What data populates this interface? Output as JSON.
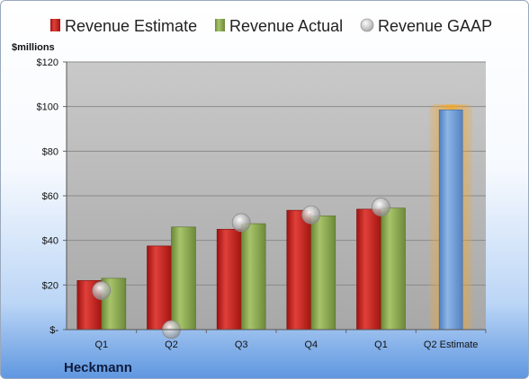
{
  "chart_data": {
    "type": "bar",
    "title": "",
    "ylabel": "$millions",
    "xlabel": "",
    "footer": "Heckmann",
    "categories": [
      "Q1",
      "Q2",
      "Q3",
      "Q4",
      "Q1",
      "Q2 Estimate"
    ],
    "ylim": [
      0,
      120
    ],
    "yticks": [
      0,
      20,
      40,
      60,
      80,
      100,
      120
    ],
    "ytick_labels": [
      "$-",
      "$20",
      "$40",
      "$60",
      "$80",
      "$100",
      "$120"
    ],
    "legend_position": "top",
    "grid": true,
    "series": [
      {
        "name": "Revenue Estimate",
        "kind": "bar",
        "color": "#d42a24",
        "values": [
          22,
          37.5,
          45,
          53.5,
          54,
          null
        ]
      },
      {
        "name": "Revenue Actual",
        "kind": "bar",
        "color": "#8fad50",
        "values": [
          23,
          46,
          47.5,
          51,
          54.5,
          null
        ]
      },
      {
        "name": "Revenue GAAP",
        "kind": "marker",
        "color": "#b3b3b3",
        "values": [
          17.5,
          0,
          48,
          51.5,
          55,
          null
        ]
      },
      {
        "name": "",
        "kind": "bar",
        "color": "#6f9fd6",
        "highlight": "#f5a623",
        "values": [
          null,
          null,
          null,
          null,
          null,
          98.5
        ]
      }
    ]
  }
}
